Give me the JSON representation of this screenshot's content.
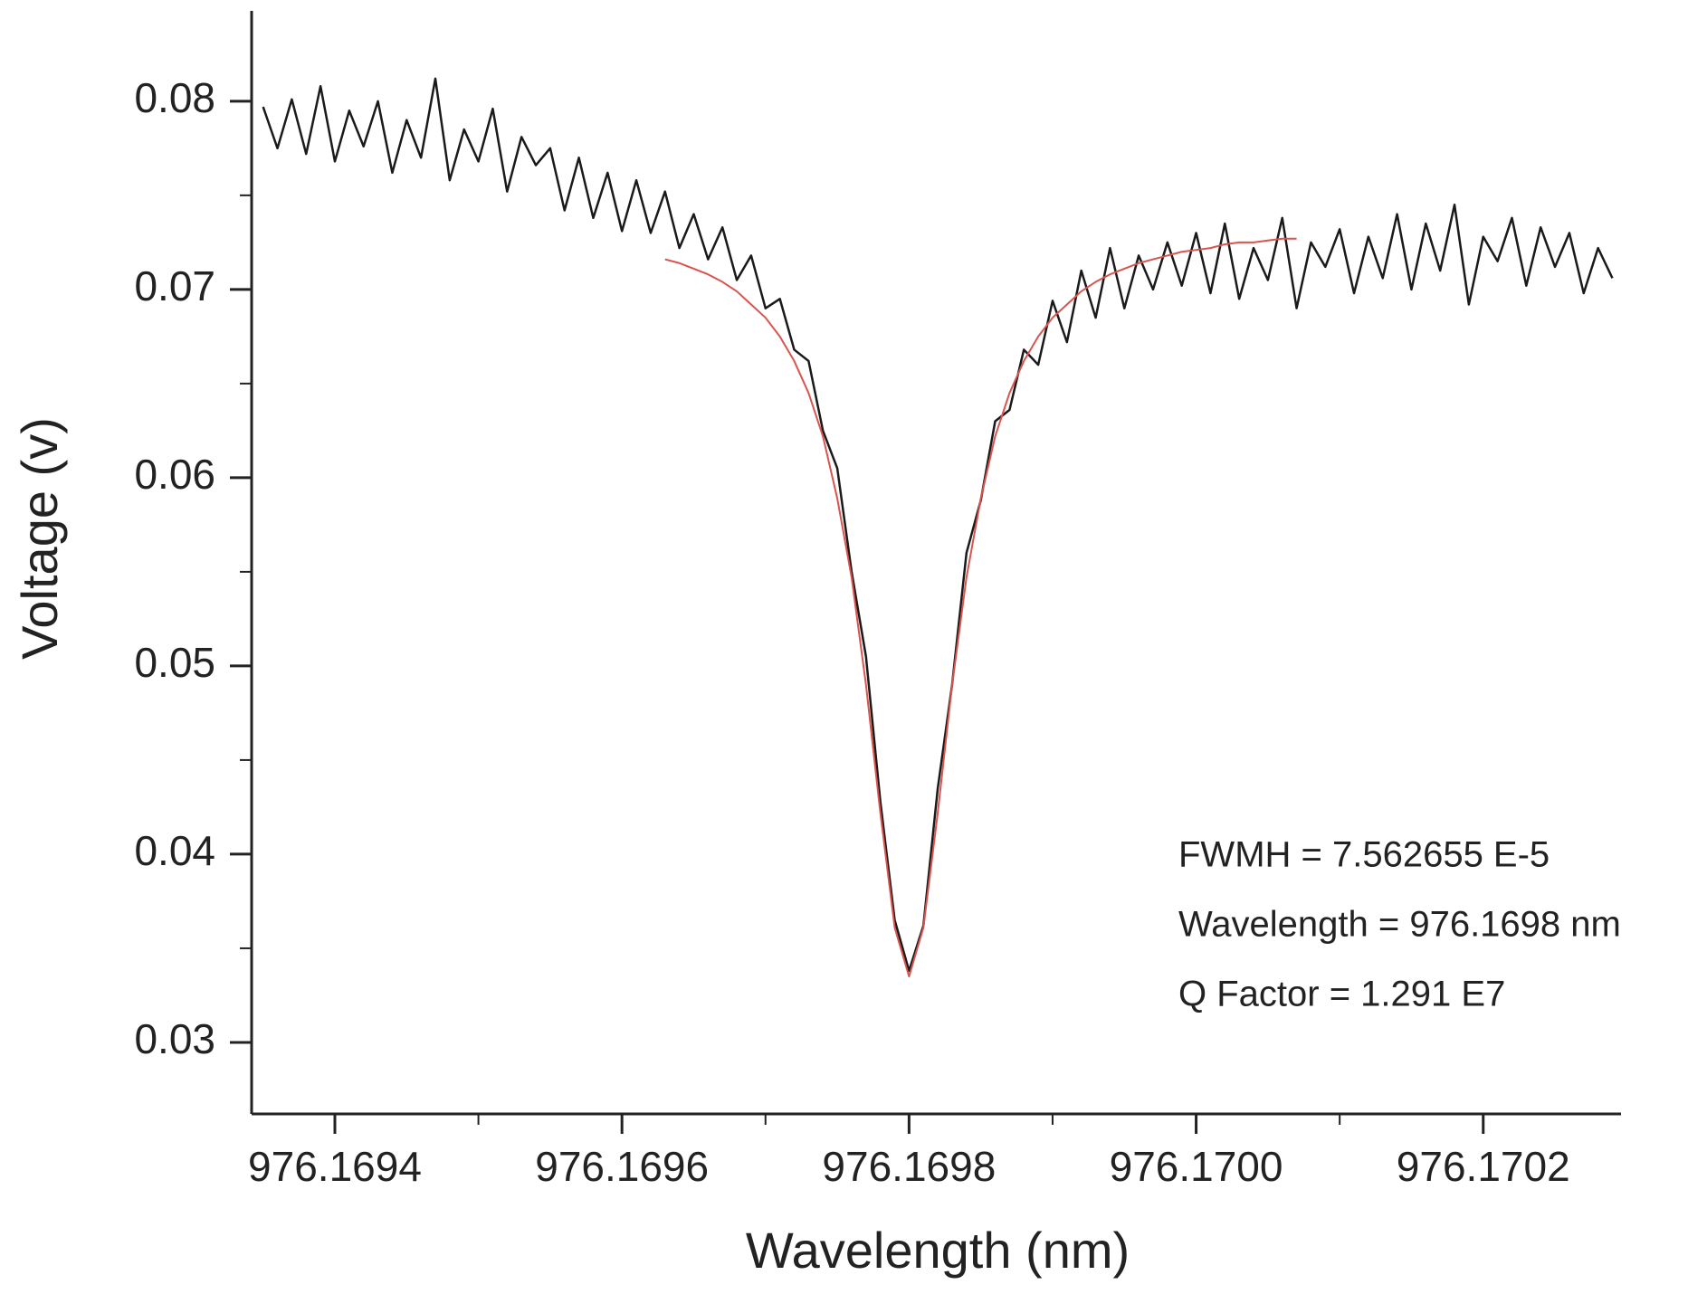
{
  "chart_data": {
    "type": "line",
    "xlabel": "Wavelength (nm)",
    "ylabel": "Voltage (v)",
    "annotations": [
      "FWMH = 7.562655 E-5",
      "Wavelength = 976.1698 nm",
      "Q Factor = 1.291 E7"
    ],
    "xlim": [
      976.169342,
      976.170296
    ],
    "ylim": [
      0.0262,
      0.0848
    ],
    "xticks": [
      976.1694,
      976.1696,
      976.1698,
      {
        "value": 976.17,
        "label": "976.1700"
      },
      976.1702
    ],
    "yticks": [
      0.03,
      0.04,
      0.05,
      0.06,
      0.07,
      0.08
    ],
    "grid": false,
    "series": [
      {
        "color": "#1a1a1a",
        "x": [
          976.16935,
          976.16936,
          976.16937,
          976.16938,
          976.16939,
          976.1694,
          976.16941,
          976.16942,
          976.16943,
          976.16944,
          976.16945,
          976.16946,
          976.16947,
          976.16948,
          976.16949,
          976.1695,
          976.16951,
          976.16952,
          976.16953,
          976.16954,
          976.16955,
          976.16956,
          976.16957,
          976.16958,
          976.16959,
          976.1696,
          976.16961,
          976.16962,
          976.16963,
          976.16964,
          976.16965,
          976.16966,
          976.16967,
          976.16968,
          976.16969,
          976.1697,
          976.16971,
          976.16972,
          976.16973,
          976.16974,
          976.16975,
          976.16976,
          976.16977,
          976.16978,
          976.16979,
          976.1698,
          976.16981,
          976.16982,
          976.16983,
          976.16984,
          976.16985,
          976.16986,
          976.16987,
          976.16988,
          976.16989,
          976.1699,
          976.16991,
          976.16992,
          976.16993,
          976.16994,
          976.16995,
          976.16996,
          976.16997,
          976.16998,
          976.16999,
          976.17,
          976.17001,
          976.17002,
          976.17003,
          976.17004,
          976.17005,
          976.17006,
          976.17007,
          976.17008,
          976.17009,
          976.1701,
          976.17011,
          976.17012,
          976.17013,
          976.17014,
          976.17015,
          976.17016,
          976.17017,
          976.17018,
          976.17019,
          976.1702,
          976.17021,
          976.17022,
          976.17023,
          976.17024,
          976.17025,
          976.17026,
          976.17027,
          976.17028,
          976.17029
        ],
        "values": [
          0.0797,
          0.0775,
          0.0801,
          0.0772,
          0.0808,
          0.0768,
          0.0795,
          0.0776,
          0.08,
          0.0762,
          0.079,
          0.077,
          0.0812,
          0.0758,
          0.0785,
          0.0768,
          0.0796,
          0.0752,
          0.0781,
          0.0766,
          0.0775,
          0.0742,
          0.077,
          0.0738,
          0.0762,
          0.0731,
          0.0758,
          0.073,
          0.0752,
          0.0722,
          0.074,
          0.0716,
          0.0733,
          0.0705,
          0.0718,
          0.069,
          0.0695,
          0.0668,
          0.0662,
          0.0625,
          0.0605,
          0.055,
          0.0505,
          0.0428,
          0.0365,
          0.0338,
          0.0362,
          0.0435,
          0.049,
          0.056,
          0.0588,
          0.063,
          0.0636,
          0.0668,
          0.066,
          0.0694,
          0.0672,
          0.071,
          0.0685,
          0.0722,
          0.069,
          0.0718,
          0.07,
          0.0725,
          0.0702,
          0.073,
          0.0698,
          0.0735,
          0.0695,
          0.0722,
          0.0705,
          0.0738,
          0.069,
          0.0725,
          0.0712,
          0.0732,
          0.0698,
          0.0728,
          0.0706,
          0.074,
          0.07,
          0.0735,
          0.071,
          0.0745,
          0.0692,
          0.0728,
          0.0715,
          0.0738,
          0.0702,
          0.0733,
          0.0712,
          0.073,
          0.0698,
          0.0722,
          0.0706
        ]
      },
      {
        "color": "#d9534f",
        "x": [
          976.16963,
          976.16964,
          976.16965,
          976.16966,
          976.16967,
          976.16968,
          976.16969,
          976.1697,
          976.16971,
          976.16972,
          976.16973,
          976.16974,
          976.16975,
          976.16976,
          976.16977,
          976.16978,
          976.16979,
          976.1698,
          976.16981,
          976.16982,
          976.16983,
          976.16984,
          976.16985,
          976.16986,
          976.16987,
          976.16988,
          976.16989,
          976.1699,
          976.16991,
          976.16992,
          976.16993,
          976.16994,
          976.16995,
          976.16996,
          976.16997,
          976.16998,
          976.16999,
          976.17,
          976.17001,
          976.17002,
          976.17003,
          976.17004,
          976.17005,
          976.17006,
          976.17007
        ],
        "values": [
          0.0716,
          0.0714,
          0.0711,
          0.0708,
          0.0704,
          0.0699,
          0.0692,
          0.0685,
          0.0675,
          0.0662,
          0.0645,
          0.0622,
          0.0589,
          0.0547,
          0.049,
          0.0422,
          0.0361,
          0.0335,
          0.0361,
          0.0422,
          0.049,
          0.0547,
          0.0589,
          0.0622,
          0.0645,
          0.0662,
          0.0675,
          0.0685,
          0.0692,
          0.0699,
          0.0704,
          0.0708,
          0.0711,
          0.0714,
          0.0716,
          0.0718,
          0.072,
          0.0721,
          0.0722,
          0.0724,
          0.0725,
          0.0725,
          0.0726,
          0.0727,
          0.0727
        ]
      }
    ]
  }
}
